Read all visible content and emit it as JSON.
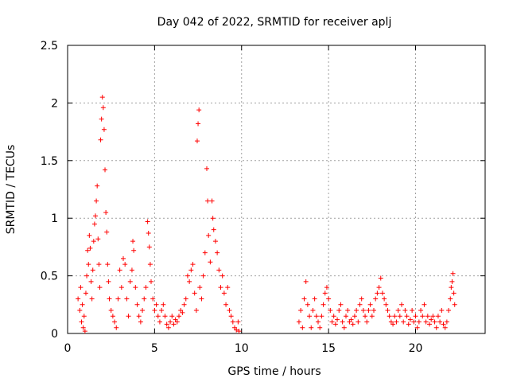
{
  "chart_data": {
    "type": "scatter",
    "title": "Day 042 of 2022, SRMTID for receiver aplj",
    "xlabel": "GPS time / hours",
    "ylabel": "SRMTID / TECUs",
    "xlim": [
      0,
      24
    ],
    "ylim": [
      0,
      2.5
    ],
    "xticks": [
      0,
      5,
      10,
      15,
      20
    ],
    "xtick_labels": [
      "0",
      "5",
      "10",
      "15",
      "20"
    ],
    "yticks": [
      0,
      0.5,
      1,
      1.5,
      2,
      2.5
    ],
    "ytick_labels": [
      "0",
      "0.5",
      "1",
      "1.5",
      "2",
      "2.5"
    ],
    "grid": true,
    "marker": "+",
    "color": "#ff0000",
    "series": [
      {
        "name": "SRMTID",
        "points": [
          [
            0.6,
            0.3
          ],
          [
            0.7,
            0.2
          ],
          [
            0.75,
            0.4
          ],
          [
            0.8,
            0.1
          ],
          [
            0.85,
            0.25
          ],
          [
            0.9,
            0.05
          ],
          [
            0.95,
            0.15
          ],
          [
            1.0,
            0.02
          ],
          [
            1.05,
            0.35
          ],
          [
            1.1,
            0.5
          ],
          [
            1.15,
            0.72
          ],
          [
            1.2,
            0.6
          ],
          [
            1.25,
            0.85
          ],
          [
            1.3,
            0.74
          ],
          [
            1.35,
            0.45
          ],
          [
            1.4,
            0.3
          ],
          [
            1.45,
            0.55
          ],
          [
            1.5,
            0.8
          ],
          [
            1.55,
            0.95
          ],
          [
            1.6,
            1.02
          ],
          [
            1.65,
            1.15
          ],
          [
            1.7,
            1.28
          ],
          [
            1.75,
            0.82
          ],
          [
            1.8,
            0.6
          ],
          [
            1.85,
            0.4
          ],
          [
            1.9,
            1.68
          ],
          [
            1.95,
            1.86
          ],
          [
            2.0,
            2.05
          ],
          [
            2.05,
            1.96
          ],
          [
            2.1,
            1.77
          ],
          [
            2.15,
            1.42
          ],
          [
            2.2,
            1.05
          ],
          [
            2.25,
            0.88
          ],
          [
            2.3,
            0.6
          ],
          [
            2.35,
            0.45
          ],
          [
            2.4,
            0.3
          ],
          [
            2.5,
            0.2
          ],
          [
            2.6,
            0.15
          ],
          [
            2.7,
            0.1
          ],
          [
            2.8,
            0.05
          ],
          [
            2.9,
            0.3
          ],
          [
            3.0,
            0.55
          ],
          [
            3.1,
            0.4
          ],
          [
            3.2,
            0.65
          ],
          [
            3.3,
            0.6
          ],
          [
            3.4,
            0.3
          ],
          [
            3.5,
            0.15
          ],
          [
            3.6,
            0.45
          ],
          [
            3.7,
            0.55
          ],
          [
            3.75,
            0.8
          ],
          [
            3.8,
            0.72
          ],
          [
            3.9,
            0.4
          ],
          [
            4.0,
            0.25
          ],
          [
            4.1,
            0.15
          ],
          [
            4.2,
            0.1
          ],
          [
            4.3,
            0.2
          ],
          [
            4.4,
            0.3
          ],
          [
            4.5,
            0.4
          ],
          [
            4.6,
            0.97
          ],
          [
            4.65,
            0.87
          ],
          [
            4.7,
            0.75
          ],
          [
            4.75,
            0.6
          ],
          [
            4.8,
            0.45
          ],
          [
            4.9,
            0.3
          ],
          [
            5.0,
            0.2
          ],
          [
            5.1,
            0.25
          ],
          [
            5.2,
            0.15
          ],
          [
            5.3,
            0.1
          ],
          [
            5.4,
            0.2
          ],
          [
            5.5,
            0.25
          ],
          [
            5.6,
            0.15
          ],
          [
            5.7,
            0.08
          ],
          [
            5.8,
            0.05
          ],
          [
            5.9,
            0.1
          ],
          [
            6.0,
            0.15
          ],
          [
            6.1,
            0.08
          ],
          [
            6.2,
            0.12
          ],
          [
            6.3,
            0.1
          ],
          [
            6.4,
            0.15
          ],
          [
            6.5,
            0.2
          ],
          [
            6.6,
            0.18
          ],
          [
            6.7,
            0.25
          ],
          [
            6.8,
            0.3
          ],
          [
            6.9,
            0.5
          ],
          [
            7.0,
            0.45
          ],
          [
            7.1,
            0.55
          ],
          [
            7.2,
            0.6
          ],
          [
            7.3,
            0.35
          ],
          [
            7.4,
            0.2
          ],
          [
            7.45,
            1.67
          ],
          [
            7.5,
            1.82
          ],
          [
            7.55,
            1.94
          ],
          [
            7.6,
            0.4
          ],
          [
            7.7,
            0.3
          ],
          [
            7.8,
            0.5
          ],
          [
            7.9,
            0.7
          ],
          [
            8.0,
            1.43
          ],
          [
            8.05,
            1.15
          ],
          [
            8.1,
            0.85
          ],
          [
            8.2,
            0.62
          ],
          [
            8.3,
            1.15
          ],
          [
            8.35,
            1.0
          ],
          [
            8.4,
            0.9
          ],
          [
            8.5,
            0.8
          ],
          [
            8.6,
            0.7
          ],
          [
            8.7,
            0.55
          ],
          [
            8.8,
            0.4
          ],
          [
            8.9,
            0.5
          ],
          [
            9.0,
            0.35
          ],
          [
            9.1,
            0.25
          ],
          [
            9.2,
            0.4
          ],
          [
            9.3,
            0.2
          ],
          [
            9.4,
            0.15
          ],
          [
            9.5,
            0.1
          ],
          [
            9.6,
            0.05
          ],
          [
            9.7,
            0.03
          ],
          [
            9.8,
            0.1
          ],
          [
            9.85,
            0.02
          ],
          [
            13.3,
            0.1
          ],
          [
            13.4,
            0.2
          ],
          [
            13.5,
            0.05
          ],
          [
            13.6,
            0.3
          ],
          [
            13.7,
            0.45
          ],
          [
            13.8,
            0.25
          ],
          [
            13.9,
            0.15
          ],
          [
            14.0,
            0.05
          ],
          [
            14.1,
            0.2
          ],
          [
            14.2,
            0.3
          ],
          [
            14.3,
            0.15
          ],
          [
            14.4,
            0.1
          ],
          [
            14.5,
            0.05
          ],
          [
            14.6,
            0.15
          ],
          [
            14.7,
            0.25
          ],
          [
            14.8,
            0.35
          ],
          [
            14.9,
            0.4
          ],
          [
            15.0,
            0.3
          ],
          [
            15.1,
            0.2
          ],
          [
            15.2,
            0.1
          ],
          [
            15.3,
            0.15
          ],
          [
            15.4,
            0.08
          ],
          [
            15.5,
            0.12
          ],
          [
            15.6,
            0.2
          ],
          [
            15.7,
            0.25
          ],
          [
            15.8,
            0.1
          ],
          [
            15.9,
            0.05
          ],
          [
            16.0,
            0.15
          ],
          [
            16.1,
            0.2
          ],
          [
            16.2,
            0.1
          ],
          [
            16.3,
            0.12
          ],
          [
            16.4,
            0.08
          ],
          [
            16.5,
            0.15
          ],
          [
            16.6,
            0.2
          ],
          [
            16.7,
            0.1
          ],
          [
            16.8,
            0.25
          ],
          [
            16.9,
            0.3
          ],
          [
            17.0,
            0.2
          ],
          [
            17.1,
            0.15
          ],
          [
            17.2,
            0.1
          ],
          [
            17.3,
            0.2
          ],
          [
            17.4,
            0.25
          ],
          [
            17.5,
            0.15
          ],
          [
            17.6,
            0.2
          ],
          [
            17.7,
            0.3
          ],
          [
            17.8,
            0.35
          ],
          [
            17.9,
            0.4
          ],
          [
            18.0,
            0.48
          ],
          [
            18.1,
            0.35
          ],
          [
            18.2,
            0.3
          ],
          [
            18.3,
            0.25
          ],
          [
            18.4,
            0.2
          ],
          [
            18.5,
            0.15
          ],
          [
            18.6,
            0.1
          ],
          [
            18.7,
            0.08
          ],
          [
            18.8,
            0.15
          ],
          [
            18.9,
            0.1
          ],
          [
            19.0,
            0.2
          ],
          [
            19.1,
            0.15
          ],
          [
            19.2,
            0.25
          ],
          [
            19.3,
            0.1
          ],
          [
            19.4,
            0.2
          ],
          [
            19.5,
            0.15
          ],
          [
            19.6,
            0.08
          ],
          [
            19.7,
            0.12
          ],
          [
            19.8,
            0.2
          ],
          [
            19.9,
            0.1
          ],
          [
            20.0,
            0.15
          ],
          [
            20.1,
            0.05
          ],
          [
            20.2,
            0.1
          ],
          [
            20.3,
            0.2
          ],
          [
            20.4,
            0.15
          ],
          [
            20.5,
            0.25
          ],
          [
            20.6,
            0.1
          ],
          [
            20.7,
            0.15
          ],
          [
            20.8,
            0.08
          ],
          [
            20.9,
            0.12
          ],
          [
            21.0,
            0.15
          ],
          [
            21.1,
            0.1
          ],
          [
            21.2,
            0.05
          ],
          [
            21.3,
            0.15
          ],
          [
            21.4,
            0.1
          ],
          [
            21.5,
            0.2
          ],
          [
            21.6,
            0.08
          ],
          [
            21.7,
            0.05
          ],
          [
            21.8,
            0.1
          ],
          [
            21.9,
            0.2
          ],
          [
            22.0,
            0.3
          ],
          [
            22.05,
            0.4
          ],
          [
            22.1,
            0.45
          ],
          [
            22.15,
            0.52
          ],
          [
            22.2,
            0.35
          ],
          [
            22.25,
            0.25
          ]
        ]
      }
    ]
  }
}
